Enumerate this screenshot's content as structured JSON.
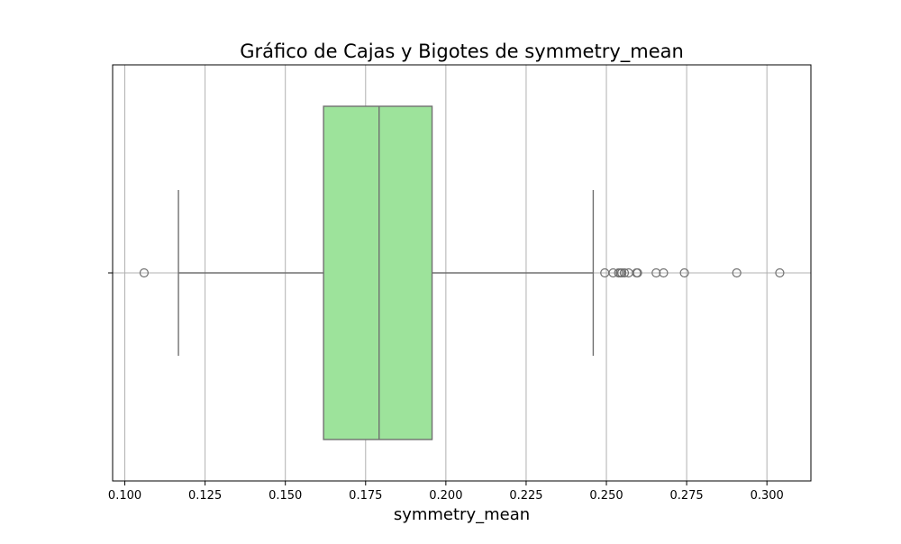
{
  "chart_data": {
    "type": "box",
    "title": "Gráfico de Cajas y Bigotes de symmetry_mean",
    "xlabel": "symmetry_mean",
    "ylabel": "",
    "orientation": "horizontal",
    "xlim": [
      0.0962,
      0.3137
    ],
    "xticks": [
      0.1,
      0.125,
      0.15,
      0.175,
      0.2,
      0.225,
      0.25,
      0.275,
      0.3
    ],
    "xtick_labels": [
      "0.100",
      "0.125",
      "0.150",
      "0.175",
      "0.200",
      "0.225",
      "0.250",
      "0.275",
      "0.300"
    ],
    "grid": true,
    "box": {
      "whisker_low": 0.1167,
      "q1": 0.1619,
      "median": 0.1792,
      "q3": 0.1957,
      "whisker_high": 0.2459
    },
    "outliers": [
      0.106,
      0.2495,
      0.2521,
      0.2538,
      0.2543,
      0.2548,
      0.2556,
      0.2569,
      0.2594,
      0.2597,
      0.2655,
      0.2678,
      0.2743,
      0.2906,
      0.304
    ],
    "colors": {
      "box_fill": "#9de39b",
      "box_edge": "#707070",
      "grid": "#b0b0b0",
      "axes": "#000000"
    }
  }
}
